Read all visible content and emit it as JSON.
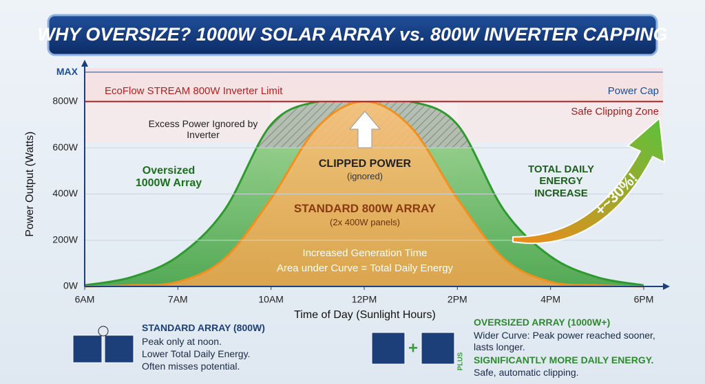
{
  "title": "WHY OVERSIZE? 1000W SOLAR ARRAY vs. 800W INVERTER CAPPING",
  "chart_data": {
    "type": "area",
    "x_label": "Time of Day (Sunlight Hours)",
    "y_label": "Power Output (Watts)",
    "categories": [
      "6AM",
      null,
      "7AM",
      null,
      "10AM",
      null,
      "12PM",
      null,
      "2PM",
      null,
      "4PM",
      null,
      "6PM"
    ],
    "series": [
      {
        "name": "Oversized 1000W Array",
        "color": "#2e9a2e",
        "values": [
          5,
          40,
          130,
          330,
          700,
          800,
          800,
          800,
          700,
          330,
          130,
          40,
          5
        ]
      },
      {
        "name": "STANDARD 800W ARRAY",
        "color": "#f0901e",
        "values": [
          0,
          5,
          20,
          120,
          380,
          690,
          800,
          690,
          380,
          120,
          20,
          5,
          0
        ]
      }
    ],
    "ylim": [
      0,
      945
    ],
    "yticks": [
      {
        "value": 0,
        "label": "0W"
      },
      {
        "value": 200,
        "label": "200W"
      },
      {
        "value": 400,
        "label": "400W"
      },
      {
        "value": 600,
        "label": "600W"
      },
      {
        "value": 800,
        "label": "800W"
      },
      {
        "value": 927,
        "label": "MAX"
      }
    ],
    "reference_line": {
      "value": 800,
      "label": "EcoFlow STREAM 800W Inverter Limit",
      "color": "#b52020",
      "right_label": "Power Cap",
      "zone_label": "Safe Clipping Zone"
    },
    "annotations": {
      "excess": "Excess Power Ignored by Inverter",
      "clipped": "CLIPPED POWER",
      "clipped_note": "(ignored)",
      "standard_note": "(2x 400W panels)",
      "generation": "Increased Generation Time",
      "area": "Area under Curve = Total Daily Energy",
      "increase": "TOTAL DAILY ENERGY INCREASE",
      "percent": "+~30%!"
    }
  },
  "panels": {
    "standard": {
      "title": "STANDARD ARRAY (800W)",
      "lines": [
        "Peak only at noon.",
        "Lower Total Daily Energy.",
        "Often misses potential."
      ]
    },
    "oversized": {
      "plus": "PLUS",
      "title": "OVERSIZED ARRAY (1000W+)",
      "lines": [
        "Wider Curve: Peak power reached sooner, lasts longer.",
        "SIGNIFICANTLY MORE DAILY ENERGY.",
        "Safe, automatic clipping."
      ]
    }
  }
}
